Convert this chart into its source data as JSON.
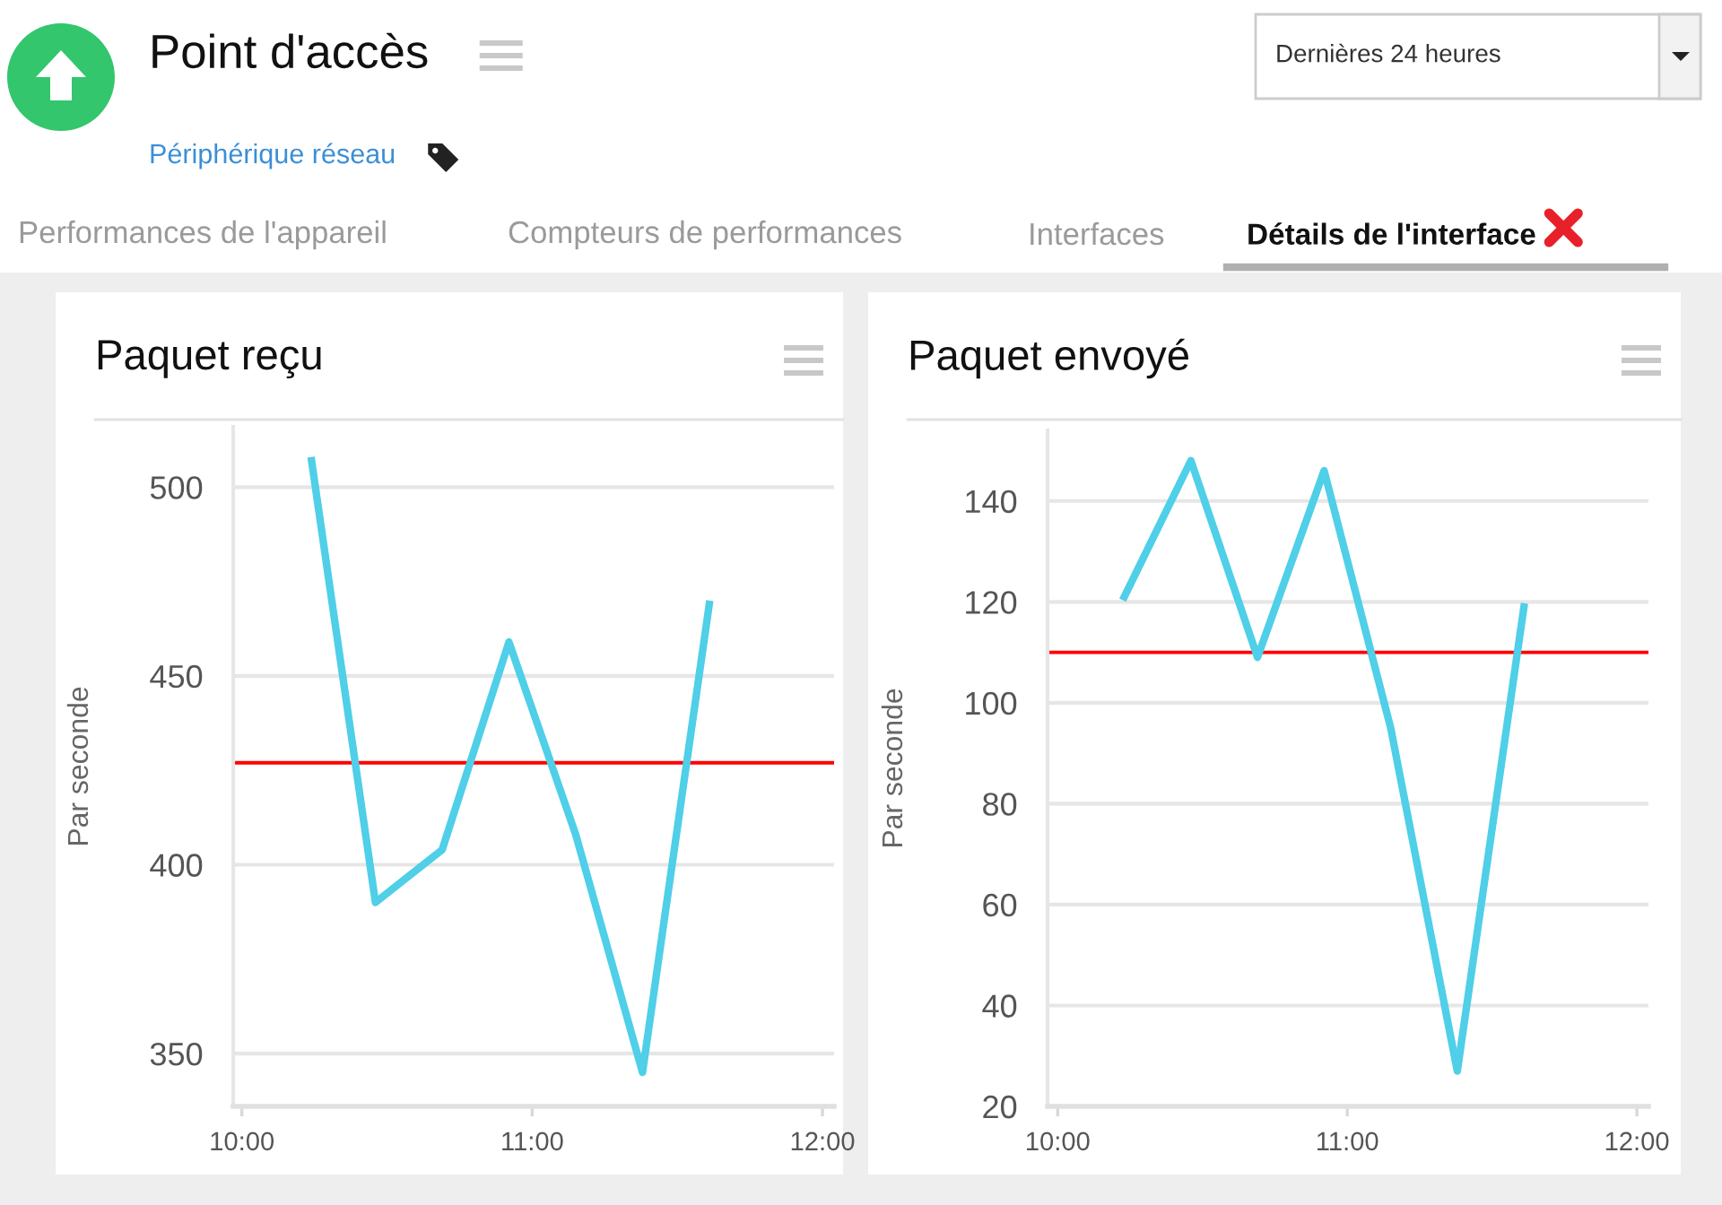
{
  "chart_data": [
    {
      "type": "other",
      "title": "Point d'accès",
      "annotations": [
        "Périphérique réseau",
        "Performances de l'appareil",
        "Compteurs de performances",
        "Interfaces",
        "Détails de l'interface",
        "Dernières 24 heures"
      ]
    },
    {
      "type": "line",
      "title": "Paquet reçu",
      "ylabel": "Par seconde",
      "x": [
        10.24,
        10.46,
        10.69,
        10.92,
        11.15,
        11.38,
        11.61
      ],
      "series": [
        {
          "color": "#4fcfe8",
          "values": [
            507,
            390,
            404,
            459,
            408,
            345,
            469
          ]
        }
      ],
      "xlim": [
        9.97,
        12.04
      ],
      "xticks": [
        {
          "value": 10,
          "label": "10:00"
        },
        {
          "value": 11,
          "label": "11:00"
        },
        {
          "value": 12,
          "label": "12:00"
        }
      ],
      "ylim": [
        336,
        516
      ],
      "yticks": [
        350,
        400,
        450,
        500
      ],
      "grid": "y",
      "ref_lines": [
        {
          "axis": "y",
          "value": 427,
          "color": "#ff0000"
        }
      ]
    },
    {
      "type": "line",
      "title": "Paquet envoyé",
      "ylabel": "Par seconde",
      "x": [
        10.23,
        10.46,
        10.69,
        10.92,
        11.15,
        11.38,
        11.61
      ],
      "series": [
        {
          "color": "#4fcfe8",
          "values": [
            121,
            148,
            109,
            146,
            95,
            27,
            119
          ]
        }
      ],
      "xlim": [
        9.965,
        12.04
      ],
      "xticks": [
        {
          "value": 10,
          "label": "10:00"
        },
        {
          "value": 11,
          "label": "11:00"
        },
        {
          "value": 12,
          "label": "12:00"
        }
      ],
      "ylim": [
        20,
        154
      ],
      "yticks": [
        20,
        40,
        60,
        80,
        100,
        120,
        140
      ],
      "grid": "y",
      "ref_lines": [
        {
          "axis": "y",
          "value": 110,
          "color": "#ff0000"
        }
      ]
    }
  ]
}
